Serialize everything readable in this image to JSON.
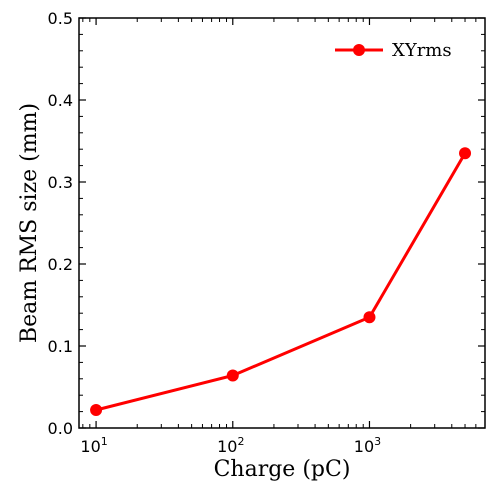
{
  "chart_data": {
    "type": "line",
    "xlabel": "Charge (pC)",
    "ylabel": "Beam RMS size (mm)",
    "x_scale": "log",
    "x_ticks": [
      {
        "value": 10,
        "base": "10",
        "exp": "1"
      },
      {
        "value": 100,
        "base": "10",
        "exp": "2"
      },
      {
        "value": 1000,
        "base": "10",
        "exp": "3"
      }
    ],
    "xlim": [
      7.5,
      7000
    ],
    "ylim": [
      0.0,
      0.5
    ],
    "y_ticks": [
      "0.0",
      "0.1",
      "0.2",
      "0.3",
      "0.4",
      "0.5"
    ],
    "grid": false,
    "legend_position": "top-right",
    "series": [
      {
        "name": "XYrms",
        "color": "#ff0000",
        "marker": "circle",
        "x": [
          10,
          100,
          1000,
          5000
        ],
        "y": [
          0.022,
          0.064,
          0.135,
          0.335
        ]
      }
    ]
  }
}
